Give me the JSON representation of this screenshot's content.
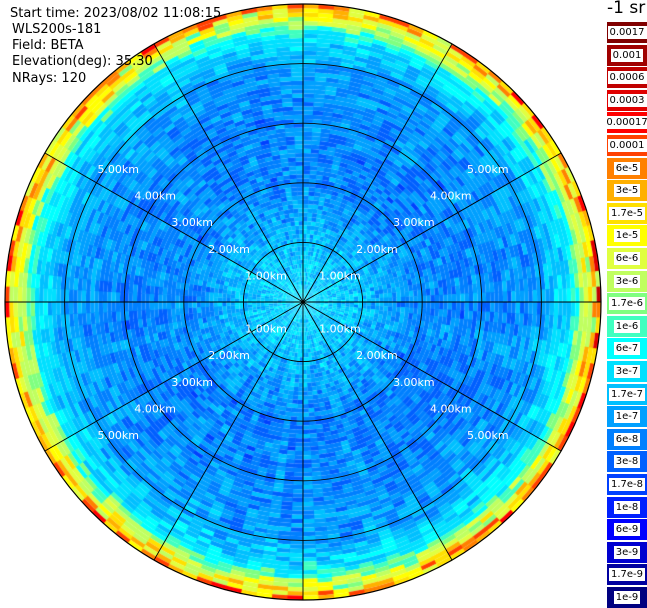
{
  "header": {
    "start_time": "Start time: 2023/08/02 11:08:15",
    "instrument": "WLS200s-181",
    "field": "Field: BETA",
    "elevation": "Elevation(deg): 35.30",
    "nrays": "NRays: 120"
  },
  "colorbar": {
    "title": "-1 sr",
    "labels": [
      "0.0017",
      "0.001",
      "0.0006",
      "0.0003",
      "0.00017",
      "0.0001",
      "6e-5",
      "3e-5",
      "1.7e-5",
      "1e-5",
      "6e-6",
      "3e-6",
      "1.7e-6",
      "1e-6",
      "6e-7",
      "3e-7",
      "1.7e-7",
      "1e-7",
      "6e-8",
      "3e-8",
      "1.7e-8",
      "1e-8",
      "6e-9",
      "3e-9",
      "1.7e-9",
      "1e-9"
    ],
    "colors": [
      "#800000",
      "#a00000",
      "#c00000",
      "#e00000",
      "#ff0000",
      "#ff4000",
      "#ff8000",
      "#ffb000",
      "#ffe000",
      "#ffff00",
      "#e0ff40",
      "#c0ff60",
      "#80ff80",
      "#40ffc0",
      "#00ffff",
      "#00e0ff",
      "#00c0ff",
      "#00a0ff",
      "#0080ff",
      "#0060ff",
      "#0040ff",
      "#0020ff",
      "#0000ff",
      "#0000d0",
      "#0000a0",
      "#000080"
    ]
  },
  "chart_data": {
    "type": "heatmap",
    "projection": "polar",
    "field": "BETA",
    "rays": 120,
    "range_rings_km": [
      1,
      2,
      3,
      4,
      5
    ],
    "max_range_km": 5.0,
    "spoke_count": 12,
    "range_labels": [
      "1.00km",
      "2.00km",
      "3.00km",
      "4.00km",
      "5.00km"
    ],
    "colorscale": "log",
    "value_range": [
      1e-09,
      0.0017
    ],
    "typical_value_by_range_km": [
      [
        0,
        3e-07
      ],
      [
        1,
        1.7e-07
      ],
      [
        2,
        6e-08
      ],
      [
        3,
        6e-08
      ],
      [
        4,
        1e-07
      ],
      [
        5,
        1.7e-06
      ]
    ]
  }
}
